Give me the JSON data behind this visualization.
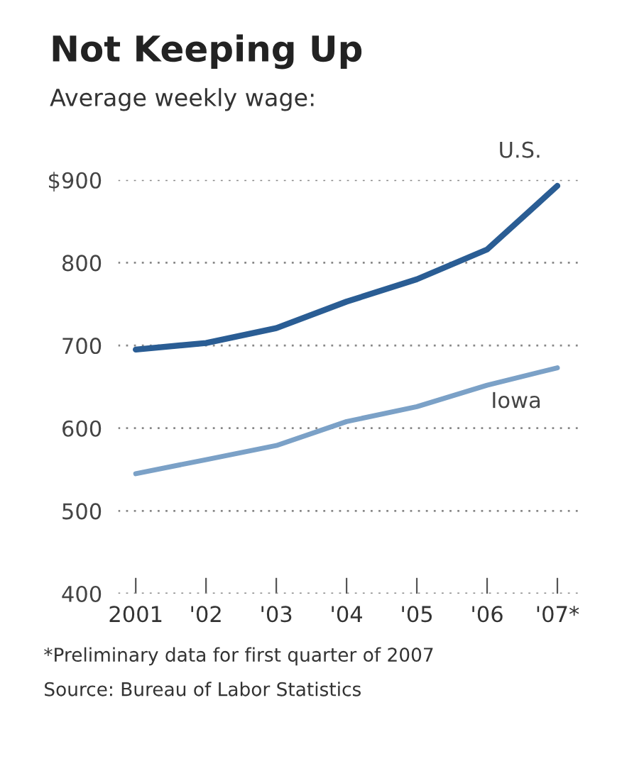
{
  "chart_data": {
    "type": "line",
    "title": "Not Keeping Up",
    "subtitle": "Average weekly wage:",
    "categories": [
      "2001",
      "'02",
      "'03",
      "'04",
      "'05",
      "'06",
      "'07*"
    ],
    "series": [
      {
        "name": "U.S.",
        "color": "#2a5d94",
        "values": [
          695,
          703,
          721,
          753,
          780,
          816,
          893
        ]
      },
      {
        "name": "Iowa",
        "color": "#7ba1c7",
        "values": [
          545,
          562,
          579,
          608,
          626,
          652,
          673
        ]
      }
    ],
    "ylim": [
      400,
      900
    ],
    "yticks": [
      400,
      500,
      600,
      700,
      800,
      {
        "value": 900,
        "label": "$900"
      }
    ],
    "grid": "y",
    "legend": false,
    "marker": "none",
    "line_style": "solid",
    "annotations": [
      "*Preliminary data for first quarter of 2007",
      "Source: Bureau of Labor Statistics"
    ]
  }
}
